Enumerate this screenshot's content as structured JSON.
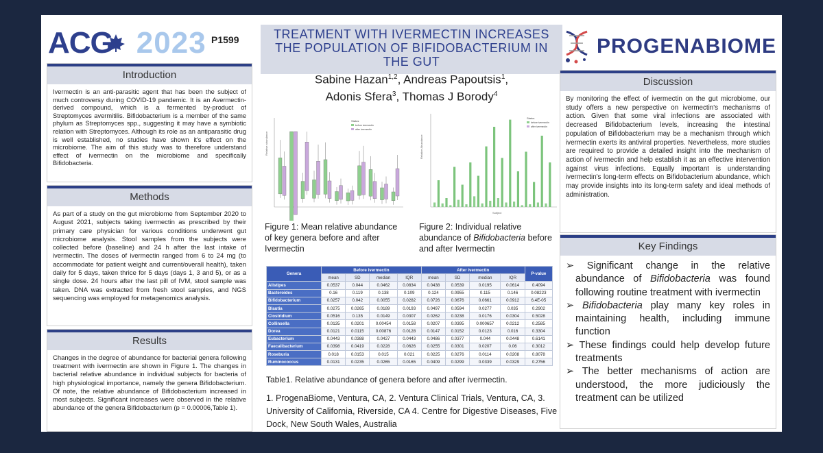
{
  "header": {
    "conf_name": "ACG",
    "conf_year": "2023",
    "poster_id": "P1599",
    "title": "TREATMENT WITH IVERMECTIN INCREASES THE POPULATION OF BIFIDOBACTERIUM IN THE GUT",
    "authors_line1_a": "Sabine Hazan",
    "authors_line1_a_sup": "1,2",
    "authors_line1_b": ", Andreas Papoutsis",
    "authors_line1_b_sup": "1",
    "authors_line2_a": ",",
    "authors_line3_a": "Adonis Sfera",
    "authors_line3_a_sup": "3",
    "authors_line3_b": ", Thomas J Borody",
    "authors_line3_b_sup": "4",
    "logo_text": "PROGENABIOME"
  },
  "introduction": {
    "heading": "Introduction",
    "text": "Ivermectin is an anti-parasitic agent that has been the subject of much controversy during COVID-19 pandemic. It is an Avermectin-derived compound, which is a fermented by-product of Streptomyces avermitilis. Bifidobacterium is a member of the same phylum as Streptomyces spp., suggesting it may have a symbiotic relation with Streptomyces. Although its role as an antiparasitic drug is well established, no studies have shown it's effect on the microbiome. The aim of this study was to therefore understand effect of ivermectin on the microbiome and specifically Bifidobacteria."
  },
  "methods": {
    "heading": "Methods",
    "text": "As part of a study on the gut microbiome from September 2020 to August 2021, subjects taking ivermectin as prescribed by their primary care physician for various conditions underwent gut microbiome analysis. Stool samples from the subjects were collected before (baseline) and 24 h after the last intake of ivermectin. The doses of ivermectin ranged from 6 to 24 mg (to accommodate for patient weight and current/overall health), taken daily for 5 days, taken thrice for 5 days (days 1, 3 and 5), or as a single dose. 24 hours after the last pill of IVM, stool sample was taken. DNA was extracted from fresh stool samples, and NGS sequencing was employed for metagenomics analysis."
  },
  "results": {
    "heading": "Results",
    "text": "Changes in the degree of abundance for bacterial genera following treatment with ivermectin are shown in Figure 1. The changes in bacterial relative abundance in individual subjects for bacteria of high physiological importance, namely the genera Bifidobacterium. Of note, the relative abundance of Bifidobacterium increased in most subjects. Significant increases were observed in the relative abundance of the genera Bifidobacterium (p = 0.00006,Table 1)."
  },
  "figure1": {
    "caption": "Figure 1: Mean relative abundance of key genera before and after Ivermectin",
    "legend_title": "Status",
    "legend_items": [
      "before ivermectin",
      "after ivermectin"
    ],
    "ylabel": "Relative abundance"
  },
  "figure2": {
    "caption_a": "Figure 2: Individual relative abundance of ",
    "caption_em": "Bifidobacteria",
    "caption_b": " before and after Ivermectin",
    "legend_title": "Status",
    "legend_items": [
      "before ivermectin",
      "after ivermectin"
    ],
    "xlabel": "Subject",
    "ylabel": "Relative Abundance"
  },
  "table1": {
    "caption": "Table1. Relative abundance of genera before and after ivermectin.",
    "col_genera": "Genera",
    "col_before": "Before ivermectin",
    "col_after": "After ivermectin",
    "col_p": "P-value",
    "subheaders": [
      "mean",
      "SD",
      "median",
      "IQR",
      "mean",
      "SD",
      "median",
      "IQR"
    ],
    "rows": [
      {
        "g": "Alistipes",
        "v": [
          "0.0537",
          "0.044",
          "0.0462",
          "0.0834",
          "0.0438",
          "0.0539",
          "0.0195",
          "0.0614",
          "0.4094"
        ]
      },
      {
        "g": "Bacteroides",
        "v": [
          "0.16",
          "0.119",
          "0.138",
          "0.109",
          "0.124",
          "0.0955",
          "0.115",
          "0.146",
          "0.08223"
        ]
      },
      {
        "g": "Bifidobacterium",
        "v": [
          "0.0257",
          "0.042",
          "0.0055",
          "0.0282",
          "0.0726",
          "0.0676",
          "0.0661",
          "0.0912",
          "6.4E-05"
        ]
      },
      {
        "g": "Blautia",
        "v": [
          "0.0275",
          "0.0265",
          "0.0189",
          "0.0193",
          "0.0497",
          "0.0594",
          "0.0277",
          "0.035",
          "0.2902"
        ]
      },
      {
        "g": "Clostridium",
        "v": [
          "0.0516",
          "0.135",
          "0.0149",
          "0.0307",
          "0.0262",
          "0.0238",
          "0.0176",
          "0.0304",
          "0.5028"
        ]
      },
      {
        "g": "Collinsella",
        "v": [
          "0.0135",
          "0.0201",
          "0.00454",
          "0.0158",
          "0.0207",
          "0.0395",
          "0.000657",
          "0.0212",
          "0.2585"
        ]
      },
      {
        "g": "Dorea",
        "v": [
          "0.0121",
          "0.0115",
          "0.00876",
          "0.0128",
          "0.0147",
          "0.0152",
          "0.0123",
          "0.016",
          "0.3304"
        ]
      },
      {
        "g": "Eubacterium",
        "v": [
          "0.0443",
          "0.0388",
          "0.0427",
          "0.0443",
          "0.0486",
          "0.0377",
          "0.044",
          "0.0448",
          "0.6141"
        ]
      },
      {
        "g": "Faecalibacterium",
        "v": [
          "0.0398",
          "0.0419",
          "0.0228",
          "0.0626",
          "0.0255",
          "0.0301",
          "0.0207",
          "0.06",
          "0.3012"
        ]
      },
      {
        "g": "Roseburia",
        "v": [
          "0.018",
          "0.0153",
          "0.015",
          "0.021",
          "0.0225",
          "0.0276",
          "0.0114",
          "0.0208",
          "0.8078"
        ]
      },
      {
        "g": "Ruminococcus",
        "v": [
          "0.0131",
          "0.0235",
          "0.0265",
          "0.0165",
          "0.0409",
          "0.0299",
          "0.0339",
          "0.0329",
          "0.2756"
        ]
      }
    ]
  },
  "affiliations": "1. ProgenaBiome, Ventura, CA, 2. Ventura Clinical Trials, Ventura, CA, 3. University of California, Riverside, CA 4. Centre for Digestive Diseases, Five Dock, New South Wales, Australia",
  "discussion": {
    "heading": "Discussion",
    "text": "By monitoring the effect of ivermectin on the gut microbiome, our study offers a new perspective on ivermectin's mechanisms of action. Given that some viral infections are associated with decreased Bifidobacterium levels, increasing the intestinal population of Bifidobacterium may be a mechanism through which ivermectin exerts its antiviral properties. Nevertheless, more studies are required to provide a detailed insight into the mechanism of action of ivermectin and help establish it as an effective intervention against virus infections. Equally important is understanding ivermectin's long-term effects on Bifidobacterium abundance, which may provide insights into its long-term safety and ideal methods of administration."
  },
  "key_findings": {
    "heading": "Key Findings",
    "item1_a": "Significant change in the relative abundance of ",
    "item1_em": "Bifidobacteria",
    "item1_b": " was found following routine treatment with ivermectin",
    "item2_em": "Bifidobacteria",
    "item2_b": " play many key roles in maintaining health, including immune function",
    "item3": "These findings could help develop future treatments",
    "item4": "The better mechanisms of action are understood, the more judiciously the treatment can be utilized"
  },
  "colors": {
    "navy": "#2d3f8d",
    "header_band": "#d7dbe6",
    "before": "#8ecf8e",
    "after": "#c9a8dc",
    "table_header": "#3a5cb6"
  }
}
